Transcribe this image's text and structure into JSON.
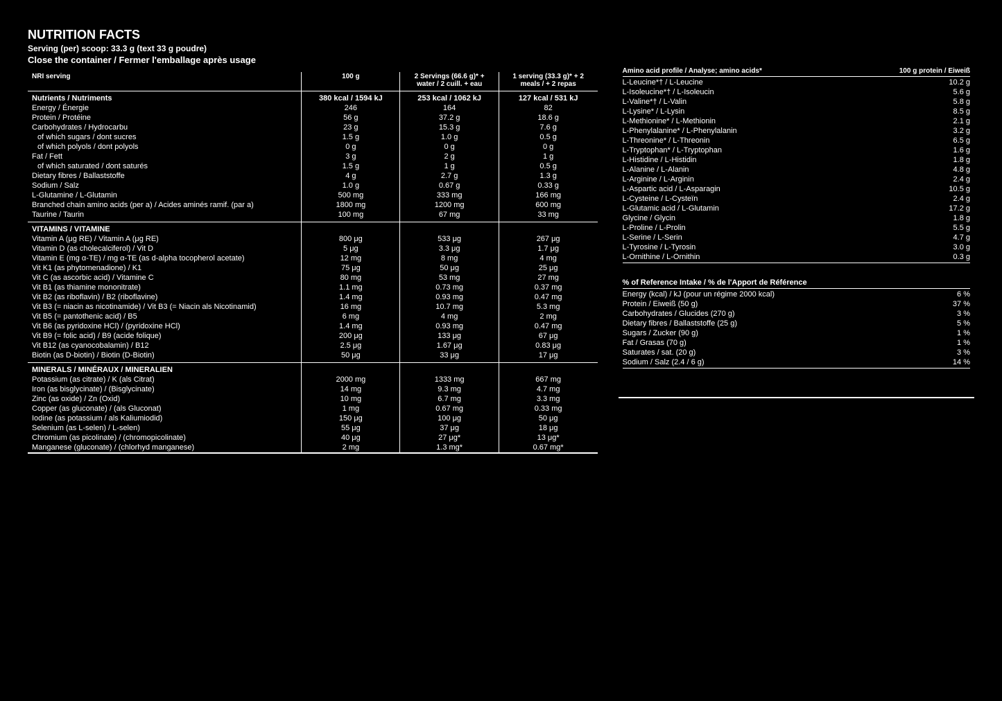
{
  "header": {
    "title": "NUTRITION FACTS",
    "serving": "Serving (per) scoop: 33.3 g (text 33 g poudre)",
    "closure": "Close the container / Fermer l'emballage après usage"
  },
  "mainTable": {
    "headers": [
      "100 g",
      "2 Servings (66.6 g)* + water / 2 cuill. + eau",
      "1 serving (33.3 g)* + 2 meals / + 2 repas"
    ],
    "nriLabel": "NRI serving",
    "nriValues": [
      "380 kcal / 1594 kJ",
      "253 kcal / 1062 kJ",
      "127 kcal / 531 kJ"
    ],
    "nutrientHdr": "Nutrients / Nutriments",
    "nutrients": [
      {
        "label": "Energy / Énergie",
        "v1": "246",
        "v2": "164",
        "v3": "82"
      },
      {
        "label": "Protein / Protéine",
        "v1": "56 g",
        "v2": "37.2 g",
        "v3": "18.6 g"
      },
      {
        "label": "Carbohydrates / Hydrocarbu",
        "v1": "23 g",
        "v2": "15.3 g",
        "v3": "7.6 g"
      },
      {
        "label": "of which sugars / dont sucres",
        "v1": "1.5 g",
        "v2": "1.0 g",
        "v3": "0.5 g",
        "indent": true
      },
      {
        "label": "of which polyols / dont polyols",
        "v1": "0 g",
        "v2": "0 g",
        "v3": "0 g",
        "indent": true
      },
      {
        "label": "Fat / Fett",
        "v1": "3 g",
        "v2": "2 g",
        "v3": "1 g"
      },
      {
        "label": "of which saturated / dont saturés",
        "v1": "1.5 g",
        "v2": "1 g",
        "v3": "0.5 g",
        "indent": true
      },
      {
        "label": "Dietary fibres / Ballaststoffe",
        "v1": "4 g",
        "v2": "2.7 g",
        "v3": "1.3 g"
      },
      {
        "label": "Sodium / Salz",
        "v1": "1.0 g",
        "v2": "0.67 g",
        "v3": "0.33 g"
      },
      {
        "label": "L-Glutamine / L-Glutamin",
        "v1": "500 mg",
        "v2": "333 mg",
        "v3": "166 mg"
      },
      {
        "label": "Branched chain amino acids (per a) / Acides aminés ramif. (par a)",
        "v1": "1800 mg",
        "v2": "1200 mg",
        "v3": "600 mg"
      },
      {
        "label": "Taurine / Taurin",
        "v1": "100 mg",
        "v2": "67 mg",
        "v3": "33 mg"
      }
    ],
    "vitaminHdr": "VITAMINS / VITAMINE",
    "vitamins": [
      {
        "label": "Vitamin A (μg RE) / Vitamin A (μg RE)",
        "v1": "800 μg",
        "v2": "533 μg",
        "v3": "267 μg"
      },
      {
        "label": "Vitamin D (as cholecalciferol) / Vit D",
        "v1": "5 μg",
        "v2": "3.3 μg",
        "v3": "1.7 μg"
      },
      {
        "label": "Vitamin E (mg α-TE) / mg α-TE (as d-alpha tocopherol acetate)",
        "v1": "12 mg",
        "v2": "8 mg",
        "v3": "4 mg"
      },
      {
        "label": "Vit K1 (as phytomenadione) / K1",
        "v1": "75 μg",
        "v2": "50 μg",
        "v3": "25 μg"
      },
      {
        "label": "Vit C (as ascorbic acid) / Vitamine C",
        "v1": "80 mg",
        "v2": "53 mg",
        "v3": "27 mg"
      },
      {
        "label": "Vit B1 (as thiamine mononitrate)",
        "v1": "1.1 mg",
        "v2": "0.73 mg",
        "v3": "0.37 mg"
      },
      {
        "label": "Vit B2 (as riboflavin) / B2 (riboflavine)",
        "v1": "1.4 mg",
        "v2": "0.93 mg",
        "v3": "0.47 mg"
      },
      {
        "label": "Vit B3 (= niacin as nicotinamide) / Vit B3 (= Niacin als Nicotinamid)",
        "v1": "16 mg",
        "v2": "10.7 mg",
        "v3": "5.3 mg"
      },
      {
        "label": "Vit B5 (= pantothenic acid) / B5",
        "v1": "6 mg",
        "v2": "4 mg",
        "v3": "2 mg"
      },
      {
        "label": "Vit B6 (as pyridoxine HCl) / (pyridoxine HCl)",
        "v1": "1.4 mg",
        "v2": "0.93 mg",
        "v3": "0.47 mg"
      },
      {
        "label": "Vit B9 (= folic acid) / B9 (acide folique)",
        "v1": "200 μg",
        "v2": "133 μg",
        "v3": "67 μg"
      },
      {
        "label": "Vit B12 (as cyanocobalamin) / B12",
        "v1": "2.5 μg",
        "v2": "1.67 μg",
        "v3": "0.83 μg"
      },
      {
        "label": "Biotin (as D-biotin) / Biotin (D-Biotin)",
        "v1": "50 μg",
        "v2": "33 μg",
        "v3": "17 μg"
      }
    ],
    "mineralHdr": "MINERALS / MINÉRAUX / MINERALIEN",
    "minerals": [
      {
        "label": "Potassium (as citrate) / K (als Citrat)",
        "v1": "2000 mg",
        "v2": "1333 mg",
        "v3": "667 mg"
      },
      {
        "label": "Iron (as bisglycinate) / (Bisglycinate)",
        "v1": "14 mg",
        "v2": "9.3 mg",
        "v3": "4.7 mg"
      },
      {
        "label": "Zinc (as oxide) / Zn (Oxid)",
        "v1": "10 mg",
        "v2": "6.7 mg",
        "v3": "3.3 mg"
      },
      {
        "label": "Copper (as gluconate) / (als Gluconat)",
        "v1": "1 mg",
        "v2": "0.67 mg",
        "v3": "0.33 mg"
      },
      {
        "label": "Iodine (as potassium / als Kaliumiodid)",
        "v1": "150 μg",
        "v2": "100 μg",
        "v3": "50 μg"
      },
      {
        "label": "Selenium (as L-selen) / L-selen)",
        "v1": "55 μg",
        "v2": "37 μg",
        "v3": "18 μg"
      },
      {
        "label": "Chromium (as picolinate) / (chromopicolinate)",
        "v1": "40 μg",
        "v2": "27 μg*",
        "v3": "13 μg*"
      },
      {
        "label": "Manganese (gluconate) / (chlorhyd manganese)",
        "v1": "2 mg",
        "v2": "1.3 mg*",
        "v3": "0.67 mg*"
      }
    ]
  },
  "aminoTable": {
    "hdr1": "Amino acid profile / Analyse; amino acids*",
    "hdr2": "100 g protein / Eiweiß",
    "rows": [
      {
        "label": "L-Leucine*† / L-Leucine",
        "val": "10.2 g"
      },
      {
        "label": "L-Isoleucine*† / L-Isoleucin",
        "val": "5.6 g"
      },
      {
        "label": "L-Valine*† / L-Valin",
        "val": "5.8 g"
      },
      {
        "label": "L-Lysine* / L-Lysin",
        "val": "8.5 g"
      },
      {
        "label": "L-Methionine* / L-Methionin",
        "val": "2.1 g"
      },
      {
        "label": "L-Phenylalanine* / L-Phenylalanin",
        "val": "3.2 g"
      },
      {
        "label": "L-Threonine* / L-Threonin",
        "val": "6.5 g"
      },
      {
        "label": "L-Tryptophan* / L-Tryptophan",
        "val": "1.6 g"
      },
      {
        "label": "L-Histidine / L-Histidin",
        "val": "1.8 g"
      },
      {
        "label": "L-Alanine / L-Alanin",
        "val": "4.8 g"
      },
      {
        "label": "L-Arginine / L-Arginin",
        "val": "2.4 g"
      },
      {
        "label": "L-Aspartic acid / L-Asparagin",
        "val": "10.5 g"
      },
      {
        "label": "L-Cysteine / L-Cysteïn",
        "val": "2.4 g"
      },
      {
        "label": "L-Glutamic acid / L-Glutamin",
        "val": "17.2 g"
      },
      {
        "label": "Glycine / Glycin",
        "val": "1.8 g"
      },
      {
        "label": "L-Proline / L-Prolin",
        "val": "5.5 g"
      },
      {
        "label": "L-Serine / L-Serin",
        "val": "4.7 g"
      },
      {
        "label": "L-Tyrosine / L-Tyrosin",
        "val": "3.0 g"
      },
      {
        "label": "L-Ornithine / L-Ornithin",
        "val": "0.3 g"
      }
    ]
  },
  "rdaTable": {
    "hdr": "% of Reference Intake / % de l'Apport de Référence",
    "rows": [
      {
        "label": "Energy (kcal) / kJ (pour un régime 2000 kcal)",
        "val": "6 %"
      },
      {
        "label": "Protein / Eiweiß (50 g)",
        "val": "37 %"
      },
      {
        "label": "Carbohydrates / Glucides (270 g)",
        "val": "3 %"
      },
      {
        "label": "Dietary fibres / Ballaststoffe (25 g)",
        "val": "5 %"
      },
      {
        "label": "Sugars / Zucker (90 g)",
        "val": "1 %"
      },
      {
        "label": "Fat / Grasas (70 g)",
        "val": "1 %"
      },
      {
        "label": "Saturates / sat. (20 g)",
        "val": "3 %"
      },
      {
        "label": "Sodium / Salz (2.4 / 6 g)",
        "val": "14 %"
      }
    ]
  }
}
